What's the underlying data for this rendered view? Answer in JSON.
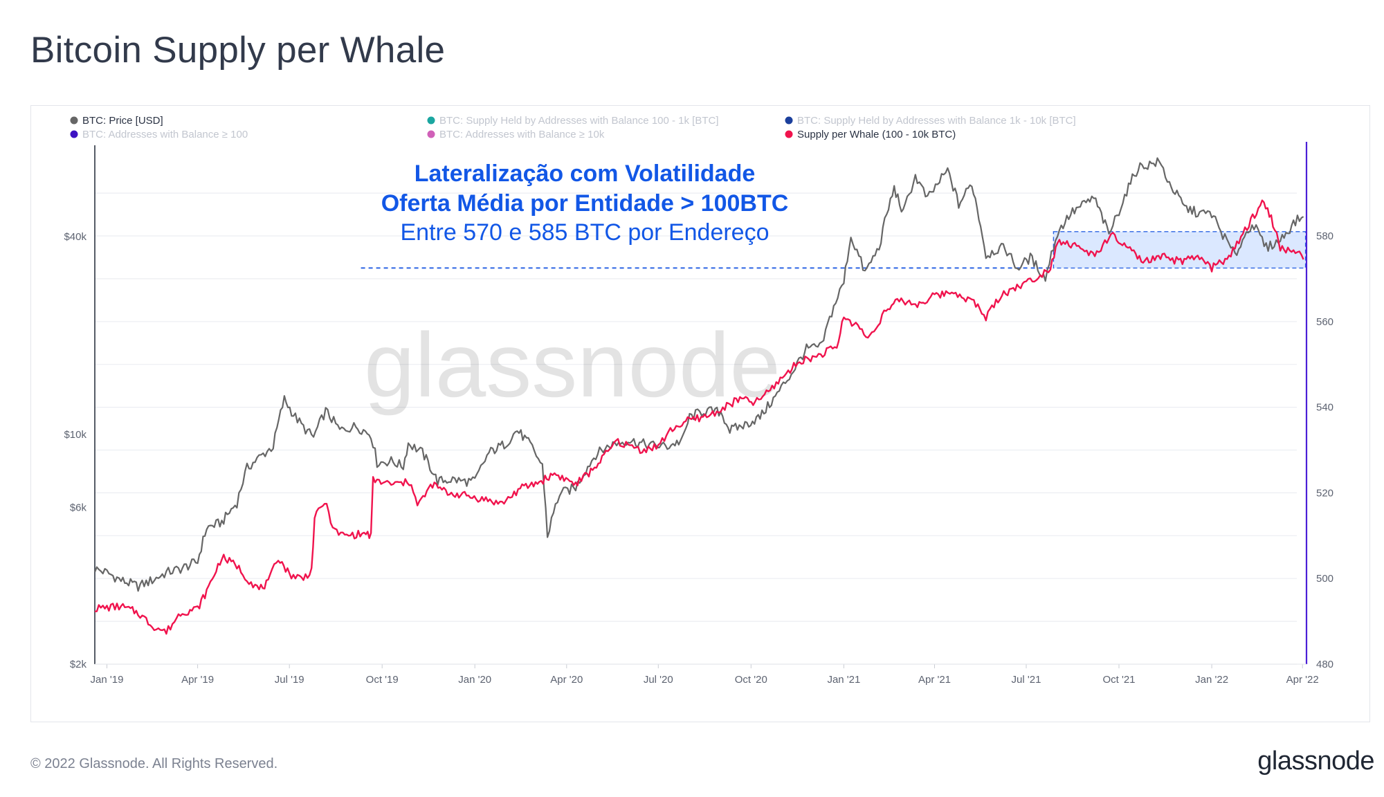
{
  "page": {
    "title": "Bitcoin Supply per Whale",
    "copyright": "© 2022 Glassnode. All Rights Reserved.",
    "brand": "glassnode",
    "watermark": "glassnode"
  },
  "colors": {
    "price": "#666666",
    "supply_per_whale": "#f0134d",
    "highlight_fill": "#cfe0ff",
    "highlight_stroke": "#2b63e3",
    "annotation_blue": "#1257e6",
    "right_axis": "#4b1fd6",
    "legend_dim": "#c2c6cf"
  },
  "chart_data": {
    "type": "line",
    "title": "Bitcoin Supply per Whale",
    "x_range": [
      "2018-12-20",
      "2022-04-05"
    ],
    "x_ticks": [
      "Jan '19",
      "Apr '19",
      "Jul '19",
      "Oct '19",
      "Jan '20",
      "Apr '20",
      "Jul '20",
      "Oct '20",
      "Jan '21",
      "Apr '21",
      "Jul '21",
      "Oct '21",
      "Jan '22",
      "Apr '22"
    ],
    "left_axis": {
      "scale": "log",
      "unit": "USD",
      "range": [
        2000,
        90000
      ],
      "tick_labels": [
        "$2k",
        "$6k",
        "$10k",
        "$40k"
      ],
      "tick_values": [
        2000,
        6000,
        10000,
        40000
      ]
    },
    "right_axis": {
      "scale": "linear",
      "unit": "BTC",
      "range": [
        480,
        600
      ],
      "tick_labels": [
        "480",
        "500",
        "520",
        "540",
        "560",
        "580"
      ],
      "tick_values": [
        480,
        500,
        520,
        540,
        560,
        580
      ]
    },
    "legend": [
      {
        "label": "BTC: Price [USD]",
        "color": "#666666",
        "active": true
      },
      {
        "label": "BTC: Supply Held by Addresses with Balance 100 - 1k [BTC]",
        "color": "#1aa6a0",
        "active": false
      },
      {
        "label": "BTC: Supply Held by Addresses with Balance 1k - 10k [BTC]",
        "color": "#1b3f9c",
        "active": false
      },
      {
        "label": "BTC: Addresses with Balance ≥ 100",
        "color": "#3d12c2",
        "active": false
      },
      {
        "label": "BTC: Addresses with Balance ≥ 10k",
        "color": "#d060b8",
        "active": false
      },
      {
        "label": "Supply per Whale (100 - 10k BTC)",
        "color": "#f0134d",
        "active": true
      }
    ],
    "series": [
      {
        "name": "BTC: Price [USD]",
        "axis": "left",
        "points": [
          [
            "2018-12-20",
            3900
          ],
          [
            "2019-01-01",
            3800
          ],
          [
            "2019-01-15",
            3600
          ],
          [
            "2019-02-01",
            3450
          ],
          [
            "2019-02-15",
            3600
          ],
          [
            "2019-03-01",
            3800
          ],
          [
            "2019-03-15",
            3900
          ],
          [
            "2019-04-01",
            4100
          ],
          [
            "2019-04-10",
            5200
          ],
          [
            "2019-04-25",
            5400
          ],
          [
            "2019-05-10",
            6200
          ],
          [
            "2019-05-20",
            7900
          ],
          [
            "2019-06-01",
            8500
          ],
          [
            "2019-06-15",
            9200
          ],
          [
            "2019-06-26",
            12800
          ],
          [
            "2019-07-05",
            11500
          ],
          [
            "2019-07-15",
            10500
          ],
          [
            "2019-07-25",
            9800
          ],
          [
            "2019-08-06",
            11800
          ],
          [
            "2019-08-20",
            10300
          ],
          [
            "2019-09-05",
            10600
          ],
          [
            "2019-09-20",
            10000
          ],
          [
            "2019-09-26",
            8200
          ],
          [
            "2019-10-10",
            8300
          ],
          [
            "2019-10-22",
            8000
          ],
          [
            "2019-10-27",
            9400
          ],
          [
            "2019-11-10",
            8800
          ],
          [
            "2019-11-25",
            7200
          ],
          [
            "2019-12-10",
            7300
          ],
          [
            "2019-12-20",
            7200
          ],
          [
            "2020-01-01",
            7200
          ],
          [
            "2020-01-15",
            8800
          ],
          [
            "2020-02-01",
            9400
          ],
          [
            "2020-02-12",
            10300
          ],
          [
            "2020-02-25",
            9300
          ],
          [
            "2020-03-08",
            8000
          ],
          [
            "2020-03-13",
            4900
          ],
          [
            "2020-03-25",
            6600
          ],
          [
            "2020-04-10",
            6900
          ],
          [
            "2020-04-30",
            8700
          ],
          [
            "2020-05-15",
            9300
          ],
          [
            "2020-06-01",
            9600
          ],
          [
            "2020-06-20",
            9300
          ],
          [
            "2020-07-10",
            9200
          ],
          [
            "2020-07-25",
            9600
          ],
          [
            "2020-08-01",
            11300
          ],
          [
            "2020-08-15",
            11800
          ],
          [
            "2020-09-01",
            11700
          ],
          [
            "2020-09-10",
            10300
          ],
          [
            "2020-09-25",
            10700
          ],
          [
            "2020-10-10",
            11300
          ],
          [
            "2020-10-25",
            13000
          ],
          [
            "2020-11-10",
            15300
          ],
          [
            "2020-11-25",
            18200
          ],
          [
            "2020-12-10",
            18500
          ],
          [
            "2020-12-20",
            23500
          ],
          [
            "2021-01-01",
            29000
          ],
          [
            "2021-01-08",
            40000
          ],
          [
            "2021-01-22",
            31000
          ],
          [
            "2021-02-05",
            37000
          ],
          [
            "2021-02-20",
            56000
          ],
          [
            "2021-03-01",
            47000
          ],
          [
            "2021-03-13",
            61000
          ],
          [
            "2021-03-25",
            52000
          ],
          [
            "2021-04-14",
            63500
          ],
          [
            "2021-04-25",
            50000
          ],
          [
            "2021-05-08",
            58000
          ],
          [
            "2021-05-15",
            46000
          ],
          [
            "2021-05-22",
            35000
          ],
          [
            "2021-06-01",
            36500
          ],
          [
            "2021-06-10",
            37000
          ],
          [
            "2021-06-22",
            32000
          ],
          [
            "2021-07-05",
            34500
          ],
          [
            "2021-07-20",
            29800
          ],
          [
            "2021-08-01",
            41000
          ],
          [
            "2021-08-14",
            47000
          ],
          [
            "2021-09-06",
            52500
          ],
          [
            "2021-09-21",
            40500
          ],
          [
            "2021-10-01",
            48000
          ],
          [
            "2021-10-20",
            65000
          ],
          [
            "2021-11-10",
            67500
          ],
          [
            "2021-11-20",
            58000
          ],
          [
            "2021-12-05",
            49000
          ],
          [
            "2021-12-20",
            47000
          ],
          [
            "2022-01-01",
            47000
          ],
          [
            "2022-01-10",
            41500
          ],
          [
            "2022-01-24",
            35000
          ],
          [
            "2022-02-10",
            44000
          ],
          [
            "2022-02-24",
            37000
          ],
          [
            "2022-03-10",
            39000
          ],
          [
            "2022-03-25",
            44500
          ],
          [
            "2022-04-02",
            46000
          ]
        ]
      },
      {
        "name": "Supply per Whale (100 - 10k BTC)",
        "axis": "right",
        "points": [
          [
            "2018-12-20",
            493
          ],
          [
            "2019-01-15",
            493.5
          ],
          [
            "2019-02-01",
            492
          ],
          [
            "2019-02-15",
            489
          ],
          [
            "2019-03-01",
            487.5
          ],
          [
            "2019-03-15",
            492
          ],
          [
            "2019-04-01",
            493
          ],
          [
            "2019-04-10",
            497
          ],
          [
            "2019-04-25",
            505
          ],
          [
            "2019-05-10",
            503
          ],
          [
            "2019-05-20",
            500
          ],
          [
            "2019-06-01",
            497.5
          ],
          [
            "2019-06-10",
            499
          ],
          [
            "2019-06-20",
            505
          ],
          [
            "2019-07-01",
            501
          ],
          [
            "2019-07-15",
            500
          ],
          [
            "2019-07-23",
            502
          ],
          [
            "2019-07-26",
            514
          ],
          [
            "2019-08-05",
            518
          ],
          [
            "2019-08-15",
            511
          ],
          [
            "2019-08-25",
            510
          ],
          [
            "2019-09-15",
            510.5
          ],
          [
            "2019-09-20",
            510
          ],
          [
            "2019-09-22",
            523
          ],
          [
            "2019-10-10",
            522
          ],
          [
            "2019-10-30",
            522.5
          ],
          [
            "2019-11-05",
            517
          ],
          [
            "2019-11-20",
            522
          ],
          [
            "2019-12-05",
            520
          ],
          [
            "2019-12-20",
            519.5
          ],
          [
            "2020-01-10",
            518.5
          ],
          [
            "2020-01-28",
            517.5
          ],
          [
            "2020-02-15",
            521
          ],
          [
            "2020-03-05",
            522.5
          ],
          [
            "2020-03-20",
            524.5
          ],
          [
            "2020-04-10",
            522
          ],
          [
            "2020-04-25",
            525
          ],
          [
            "2020-05-10",
            529
          ],
          [
            "2020-05-20",
            532
          ],
          [
            "2020-06-15",
            530
          ],
          [
            "2020-07-01",
            531
          ],
          [
            "2020-07-15",
            535
          ],
          [
            "2020-08-01",
            537
          ],
          [
            "2020-08-20",
            538
          ],
          [
            "2020-09-05",
            540
          ],
          [
            "2020-09-20",
            542
          ],
          [
            "2020-10-05",
            541
          ],
          [
            "2020-10-20",
            544
          ],
          [
            "2020-11-05",
            548
          ],
          [
            "2020-11-20",
            551
          ],
          [
            "2020-12-01",
            551.5
          ],
          [
            "2020-12-15",
            553
          ],
          [
            "2020-12-25",
            554
          ],
          [
            "2021-01-01",
            561
          ],
          [
            "2021-01-15",
            559
          ],
          [
            "2021-01-25",
            556
          ],
          [
            "2021-02-10",
            562
          ],
          [
            "2021-02-25",
            565
          ],
          [
            "2021-03-15",
            564
          ],
          [
            "2021-04-01",
            566
          ],
          [
            "2021-04-20",
            567
          ],
          [
            "2021-05-10",
            564.5
          ],
          [
            "2021-05-22",
            561
          ],
          [
            "2021-06-05",
            566
          ],
          [
            "2021-06-20",
            568
          ],
          [
            "2021-07-01",
            569
          ],
          [
            "2021-07-15",
            571
          ],
          [
            "2021-07-25",
            572.5
          ],
          [
            "2021-08-01",
            579
          ],
          [
            "2021-08-20",
            577.5
          ],
          [
            "2021-09-05",
            575.5
          ],
          [
            "2021-09-25",
            580
          ],
          [
            "2021-10-10",
            577
          ],
          [
            "2021-10-25",
            574
          ],
          [
            "2021-11-15",
            575
          ],
          [
            "2021-12-01",
            574
          ],
          [
            "2021-12-20",
            575
          ],
          [
            "2022-01-01",
            572.5
          ],
          [
            "2022-01-20",
            575.5
          ],
          [
            "2022-02-05",
            582
          ],
          [
            "2022-02-20",
            588
          ],
          [
            "2022-03-01",
            584.5
          ],
          [
            "2022-03-10",
            577
          ],
          [
            "2022-03-25",
            576.5
          ],
          [
            "2022-04-02",
            574.5
          ]
        ]
      }
    ],
    "highlight_band": {
      "x_start": "2021-07-28",
      "x_end": "2022-04-04",
      "y_low": 572.5,
      "y_high": 581,
      "axis": "right"
    },
    "reference_line": {
      "value": 572.5,
      "axis": "right",
      "x_start": "2019-09-10",
      "x_end": "2021-07-28"
    },
    "annotations": [
      {
        "text": "Lateralização com Volatilidade",
        "bold": true
      },
      {
        "text": "Oferta Média por Entidade > 100BTC",
        "bold": true
      },
      {
        "text": "Entre 570 e 585 BTC por Endereço",
        "bold": false
      }
    ],
    "grid": true,
    "legend_position": "top"
  }
}
